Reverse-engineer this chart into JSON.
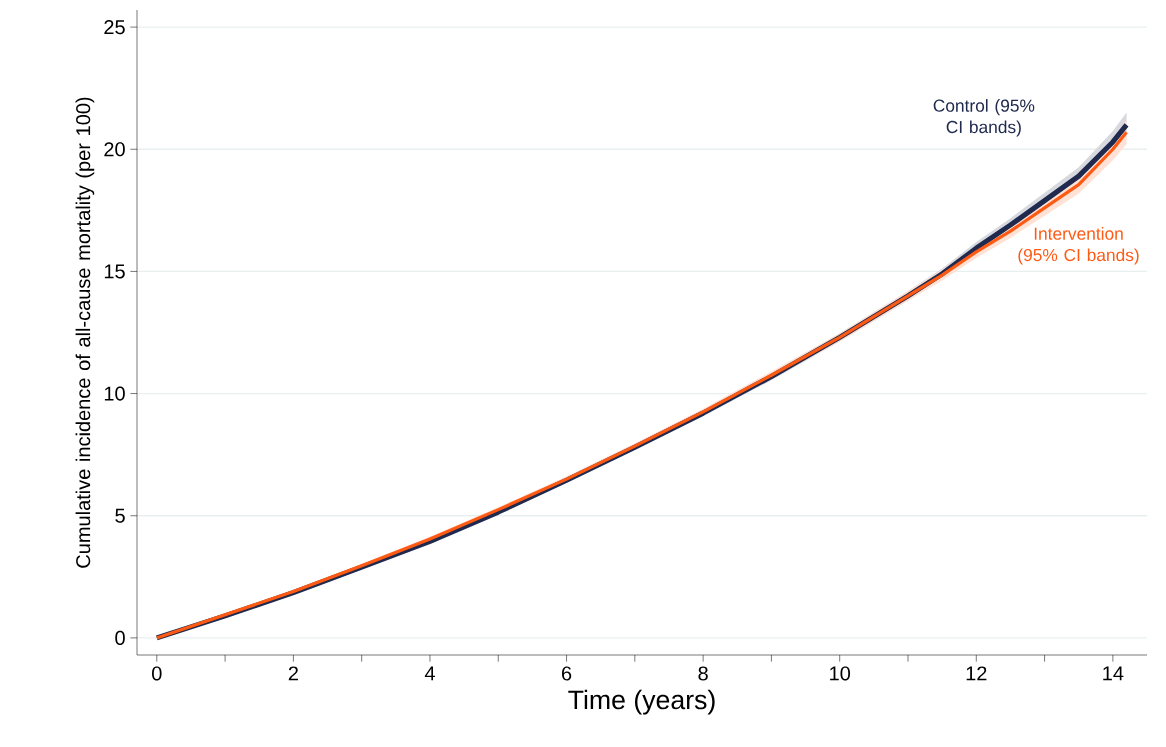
{
  "chart_data": {
    "type": "line",
    "xlabel": "Time (years)",
    "ylabel": "Cumulative incidence of all-cause mortality (per 100)",
    "xlim": [
      -0.29,
      14.5
    ],
    "ylim": [
      -0.7,
      25.7
    ],
    "xticks": [
      0,
      {
        "value": 1,
        "label": null
      },
      2,
      {
        "value": 3,
        "label": null
      },
      4,
      {
        "value": 5,
        "label": null
      },
      6,
      {
        "value": 7,
        "label": null
      },
      8,
      {
        "value": 9,
        "label": null
      },
      10,
      {
        "value": 11,
        "label": null
      },
      12,
      {
        "value": 13,
        "label": null
      },
      14
    ],
    "yticks": [
      0,
      5,
      10,
      15,
      20,
      25
    ],
    "grid": "y",
    "series": [
      {
        "name": "Control (95% CI bands)",
        "color": "#1f2a4e",
        "x": [
          0,
          1,
          2,
          3,
          4,
          5,
          6,
          7,
          8,
          9,
          10,
          11,
          11.5,
          12,
          12.5,
          13,
          13.5,
          14,
          14.2
        ],
        "values": [
          0,
          0.9,
          1.85,
          2.9,
          3.95,
          5.15,
          6.45,
          7.8,
          9.2,
          10.7,
          12.3,
          14.0,
          14.9,
          15.95,
          16.9,
          17.9,
          18.9,
          20.3,
          21.0
        ],
        "lower": [
          0,
          0.85,
          1.78,
          2.82,
          3.86,
          5.05,
          6.34,
          7.68,
          9.07,
          10.55,
          12.13,
          13.8,
          14.68,
          15.7,
          16.62,
          17.58,
          18.54,
          19.85,
          20.5
        ],
        "upper": [
          0,
          0.95,
          1.92,
          2.98,
          4.04,
          5.25,
          6.56,
          7.92,
          9.33,
          10.85,
          12.47,
          14.2,
          15.12,
          16.2,
          17.18,
          18.22,
          19.26,
          20.75,
          21.5
        ]
      },
      {
        "name": "Intervention (95% CI bands)",
        "color": "#ff5a14",
        "x": [
          0,
          1,
          2,
          3,
          4,
          5,
          6,
          7,
          8,
          9,
          10,
          11,
          11.5,
          12,
          12.5,
          13,
          13.5,
          14,
          14.2
        ],
        "values": [
          0,
          0.95,
          1.9,
          2.95,
          4.05,
          5.25,
          6.5,
          7.85,
          9.25,
          10.75,
          12.3,
          14.0,
          14.85,
          15.8,
          16.65,
          17.6,
          18.55,
          20.0,
          20.7
        ],
        "lower": [
          0,
          0.9,
          1.83,
          2.87,
          3.96,
          5.15,
          6.39,
          7.73,
          9.12,
          10.6,
          12.13,
          13.8,
          14.63,
          15.55,
          16.37,
          17.28,
          18.19,
          19.55,
          20.2
        ],
        "upper": [
          0,
          1.0,
          1.97,
          3.03,
          4.14,
          5.35,
          6.61,
          7.97,
          9.38,
          10.9,
          12.47,
          14.2,
          15.07,
          16.05,
          16.93,
          17.92,
          18.91,
          20.45,
          21.2
        ]
      }
    ]
  }
}
